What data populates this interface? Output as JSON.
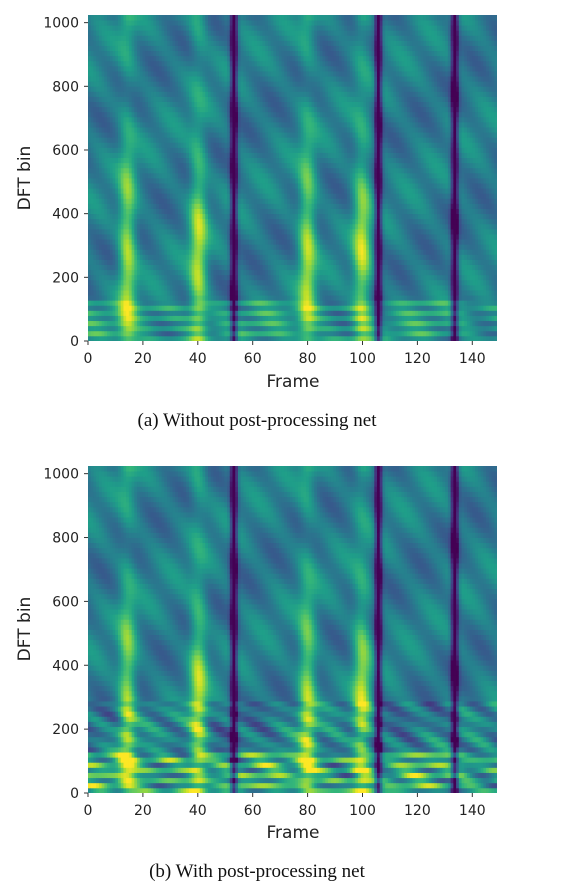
{
  "chart_data": [
    {
      "type": "heatmap",
      "caption": "(a) Without post-processing net",
      "xlabel": "Frame",
      "ylabel": "DFT bin",
      "xlim": [
        0,
        149
      ],
      "ylim": [
        0,
        1024
      ],
      "xticks": [
        0,
        20,
        40,
        60,
        80,
        100,
        120,
        140
      ],
      "yticks": [
        0,
        200,
        400,
        600,
        800,
        1000
      ],
      "colormap": "viridis",
      "bright_frames": [
        14,
        40,
        80,
        100
      ],
      "dark_frames": [
        53,
        106,
        134
      ],
      "post_processed": false
    },
    {
      "type": "heatmap",
      "caption": "(b) With post-processing net",
      "xlabel": "Frame",
      "ylabel": "DFT bin",
      "xlim": [
        0,
        149
      ],
      "ylim": [
        0,
        1024
      ],
      "xticks": [
        0,
        20,
        40,
        60,
        80,
        100,
        120,
        140
      ],
      "yticks": [
        0,
        200,
        400,
        600,
        800,
        1000
      ],
      "colormap": "viridis",
      "bright_frames": [
        14,
        40,
        80,
        100
      ],
      "dark_frames": [
        53,
        106,
        134
      ],
      "post_processed": true
    }
  ]
}
